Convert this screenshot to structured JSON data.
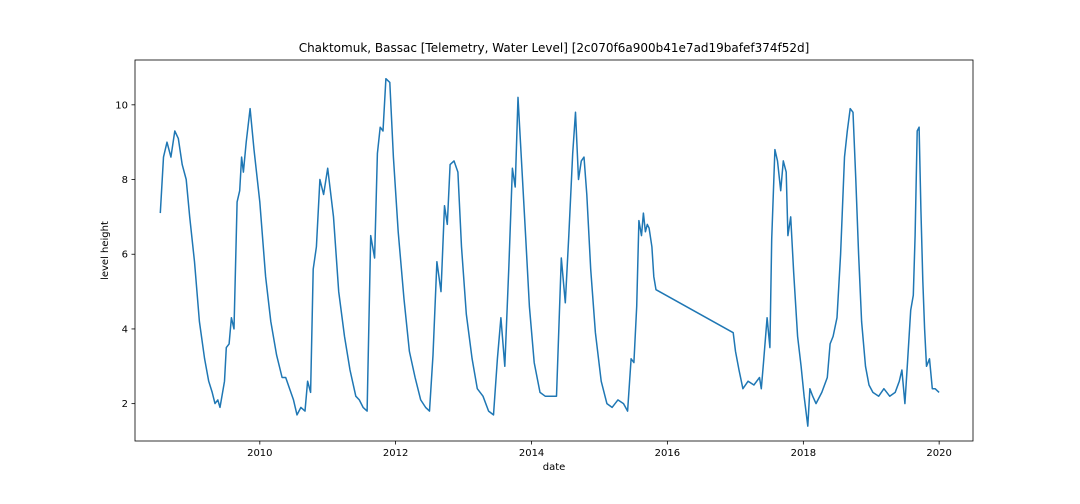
{
  "chart_data": {
    "type": "line",
    "title": "Chaktomuk, Bassac [Telemetry, Water Level] [2c070f6a900b41e7ad19bafef374f52d]",
    "xlabel": "date",
    "ylabel": "level height",
    "x_axis_type": "date",
    "xlim": [
      "2008-03-01",
      "2020-07-01"
    ],
    "ylim": [
      1.0,
      11.2
    ],
    "xticks": [
      "2010",
      "2012",
      "2014",
      "2016",
      "2018",
      "2020"
    ],
    "yticks": [
      2,
      4,
      6,
      8,
      10
    ],
    "grid": false,
    "legend": "none",
    "series": [
      {
        "color": "#1f77b4",
        "x": [
          "2008-07-15",
          "2008-08-01",
          "2008-08-20",
          "2008-09-10",
          "2008-10-01",
          "2008-10-20",
          "2008-11-10",
          "2008-12-01",
          "2008-12-20",
          "2009-01-15",
          "2009-02-10",
          "2009-03-10",
          "2009-04-01",
          "2009-04-20",
          "2009-05-05",
          "2009-05-20",
          "2009-06-01",
          "2009-06-15",
          "2009-06-25",
          "2009-07-05",
          "2009-07-20",
          "2009-08-01",
          "2009-08-15",
          "2009-09-01",
          "2009-09-15",
          "2009-09-25",
          "2009-10-05",
          "2009-10-20",
          "2009-11-10",
          "2009-12-01",
          "2010-01-01",
          "2010-02-01",
          "2010-03-01",
          "2010-04-01",
          "2010-05-01",
          "2010-05-20",
          "2010-06-10",
          "2010-07-01",
          "2010-07-20",
          "2010-08-10",
          "2010-09-01",
          "2010-09-15",
          "2010-10-01",
          "2010-10-15",
          "2010-11-01",
          "2010-11-20",
          "2010-12-10",
          "2011-01-01",
          "2011-02-01",
          "2011-03-01",
          "2011-04-01",
          "2011-05-01",
          "2011-06-01",
          "2011-06-20",
          "2011-07-10",
          "2011-08-01",
          "2011-08-20",
          "2011-09-10",
          "2011-09-25",
          "2011-10-10",
          "2011-10-25",
          "2011-11-10",
          "2011-12-01",
          "2011-12-20",
          "2012-01-15",
          "2012-02-15",
          "2012-03-15",
          "2012-04-15",
          "2012-05-15",
          "2012-06-10",
          "2012-07-01",
          "2012-07-20",
          "2012-08-10",
          "2012-09-01",
          "2012-09-20",
          "2012-10-05",
          "2012-10-20",
          "2012-11-10",
          "2012-12-01",
          "2012-12-20",
          "2013-01-15",
          "2013-02-15",
          "2013-03-15",
          "2013-04-15",
          "2013-05-15",
          "2013-06-10",
          "2013-07-01",
          "2013-07-20",
          "2013-08-10",
          "2013-09-01",
          "2013-09-20",
          "2013-10-05",
          "2013-10-20",
          "2013-11-10",
          "2013-12-01",
          "2013-12-20",
          "2014-01-15",
          "2014-02-15",
          "2014-03-15",
          "2014-04-15",
          "2014-05-15",
          "2014-06-10",
          "2014-07-01",
          "2014-07-20",
          "2014-08-10",
          "2014-08-25",
          "2014-09-10",
          "2014-09-25",
          "2014-10-10",
          "2014-10-25",
          "2014-11-15",
          "2014-12-10",
          "2015-01-10",
          "2015-02-10",
          "2015-03-10",
          "2015-04-10",
          "2015-05-10",
          "2015-06-01",
          "2015-06-20",
          "2015-07-05",
          "2015-07-20",
          "2015-08-01",
          "2015-08-15",
          "2015-08-25",
          "2015-09-05",
          "2015-09-15",
          "2015-09-25",
          "2015-10-10",
          "2015-10-20",
          "2015-11-01",
          "2016-12-20",
          "2017-01-01",
          "2017-01-20",
          "2017-02-10",
          "2017-03-10",
          "2017-04-10",
          "2017-05-10",
          "2017-05-20",
          "2017-06-01",
          "2017-06-20",
          "2017-07-05",
          "2017-07-15",
          "2017-08-01",
          "2017-08-15",
          "2017-09-01",
          "2017-09-15",
          "2017-10-01",
          "2017-10-10",
          "2017-10-25",
          "2017-11-10",
          "2017-12-01",
          "2017-12-20",
          "2018-01-05",
          "2018-01-25",
          "2018-02-05",
          "2018-02-20",
          "2018-03-10",
          "2018-04-10",
          "2018-05-10",
          "2018-05-25",
          "2018-06-10",
          "2018-07-01",
          "2018-07-20",
          "2018-08-10",
          "2018-08-25",
          "2018-09-10",
          "2018-09-25",
          "2018-10-10",
          "2018-10-25",
          "2018-11-10",
          "2018-12-01",
          "2018-12-20",
          "2019-01-10",
          "2019-02-10",
          "2019-03-10",
          "2019-04-10",
          "2019-05-10",
          "2019-06-01",
          "2019-06-15",
          "2019-07-01",
          "2019-07-15",
          "2019-08-01",
          "2019-08-15",
          "2019-08-25",
          "2019-09-05",
          "2019-09-15",
          "2019-09-25",
          "2019-10-05",
          "2019-10-15",
          "2019-10-25",
          "2019-11-10",
          "2019-11-25",
          "2019-12-10",
          "2020-01-01"
        ],
        "values": [
          7.1,
          8.6,
          9.0,
          8.6,
          9.3,
          9.1,
          8.4,
          8.0,
          7.0,
          5.8,
          4.2,
          3.2,
          2.6,
          2.3,
          2.0,
          2.1,
          1.9,
          2.3,
          2.6,
          3.5,
          3.6,
          4.3,
          4.0,
          7.4,
          7.7,
          8.6,
          8.2,
          9.0,
          9.9,
          8.8,
          7.4,
          5.4,
          4.2,
          3.3,
          2.7,
          2.7,
          2.4,
          2.1,
          1.7,
          1.9,
          1.8,
          2.6,
          2.3,
          5.6,
          6.2,
          8.0,
          7.6,
          8.3,
          7.0,
          5.0,
          3.8,
          2.9,
          2.2,
          2.1,
          1.9,
          1.8,
          6.5,
          5.9,
          8.7,
          9.4,
          9.3,
          10.7,
          10.6,
          8.6,
          6.6,
          4.8,
          3.4,
          2.7,
          2.1,
          1.9,
          1.8,
          3.3,
          5.8,
          5.0,
          7.3,
          6.8,
          8.4,
          8.5,
          8.2,
          6.2,
          4.4,
          3.2,
          2.4,
          2.2,
          1.8,
          1.7,
          3.2,
          4.3,
          3.0,
          5.7,
          8.3,
          7.8,
          10.2,
          8.3,
          6.4,
          4.6,
          3.1,
          2.3,
          2.2,
          2.2,
          2.2,
          5.9,
          4.7,
          6.5,
          8.7,
          9.8,
          8.0,
          8.5,
          8.6,
          7.6,
          5.6,
          3.9,
          2.6,
          2.0,
          1.9,
          2.1,
          2.0,
          1.8,
          3.2,
          3.1,
          4.6,
          6.9,
          6.5,
          7.1,
          6.6,
          6.8,
          6.7,
          6.2,
          5.4,
          5.05,
          3.9,
          3.4,
          2.9,
          2.4,
          2.6,
          2.5,
          2.7,
          2.4,
          3.1,
          4.3,
          3.5,
          6.4,
          8.8,
          8.5,
          7.7,
          8.5,
          8.2,
          6.5,
          7.0,
          5.5,
          3.8,
          3.0,
          2.2,
          1.4,
          2.4,
          2.2,
          2.0,
          2.3,
          2.7,
          3.6,
          3.8,
          4.3,
          6.0,
          8.6,
          9.3,
          9.9,
          9.8,
          8.0,
          6.0,
          4.2,
          3.0,
          2.5,
          2.3,
          2.2,
          2.4,
          2.2,
          2.3,
          2.6,
          2.9,
          2.0,
          3.1,
          4.5,
          4.9,
          6.5,
          9.3,
          9.4,
          7.2,
          5.3,
          4.0,
          3.0,
          3.2,
          2.4,
          2.4,
          2.3
        ]
      }
    ]
  }
}
